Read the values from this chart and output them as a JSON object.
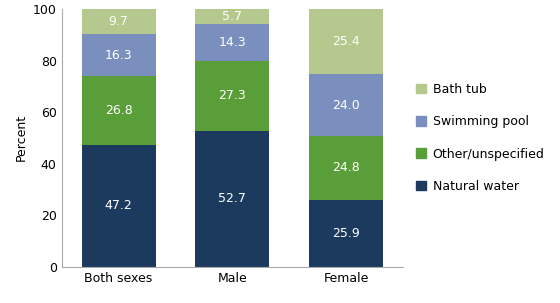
{
  "categories": [
    "Both sexes",
    "Male",
    "Female"
  ],
  "series": [
    {
      "label": "Natural water",
      "values": [
        47.2,
        52.7,
        25.9
      ],
      "color": "#1b3a5e"
    },
    {
      "label": "Other/unspecified",
      "values": [
        26.8,
        27.3,
        24.8
      ],
      "color": "#5a9e3a"
    },
    {
      "label": "Swimming pool",
      "values": [
        16.3,
        14.3,
        24.0
      ],
      "color": "#7b8fbf"
    },
    {
      "label": "Bath tub",
      "values": [
        9.7,
        5.7,
        25.4
      ],
      "color": "#b5c98e"
    }
  ],
  "ylabel": "Percent",
  "ylim": [
    0,
    100
  ],
  "yticks": [
    0,
    20,
    40,
    60,
    80,
    100
  ],
  "bar_width": 0.65,
  "label_color": "#ffffff",
  "tick_fontsize": 9,
  "label_fontsize": 9,
  "ylabel_fontsize": 9,
  "legend_fontsize": 9,
  "background_color": "#ffffff"
}
